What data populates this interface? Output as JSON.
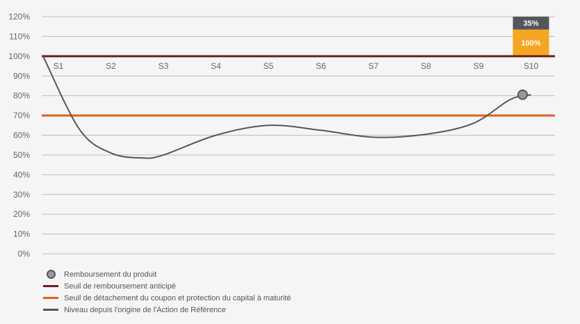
{
  "chart_data": {
    "type": "line",
    "y_ticks": [
      "0%",
      "10%",
      "20%",
      "30%",
      "40%",
      "50%",
      "60%",
      "70%",
      "80%",
      "90%",
      "100%",
      "110%",
      "120%"
    ],
    "ylim": [
      0,
      120
    ],
    "categories": [
      "S1",
      "S2",
      "S3",
      "S4",
      "S5",
      "S6",
      "S7",
      "S8",
      "S9",
      "S10"
    ],
    "series": [
      {
        "name": "Niveau depuis l'origine de l'Action de Référence",
        "color": "#55565b",
        "points": [
          {
            "x": 0.0,
            "y": 100
          },
          {
            "x": 0.4,
            "y": 63
          },
          {
            "x": 1.0,
            "y": 51
          },
          {
            "x": 1.6,
            "y": 48.5
          },
          {
            "x": 2.0,
            "y": 50
          },
          {
            "x": 3.0,
            "y": 60
          },
          {
            "x": 4.0,
            "y": 65
          },
          {
            "x": 5.0,
            "y": 62.5
          },
          {
            "x": 6.0,
            "y": 59
          },
          {
            "x": 7.0,
            "y": 60.5
          },
          {
            "x": 7.9,
            "y": 66
          },
          {
            "x": 8.6,
            "y": 78
          },
          {
            "x": 9.0,
            "y": 80.5
          }
        ]
      }
    ],
    "thresholds": [
      {
        "name": "Seuil de remboursement anticipé",
        "value": 100,
        "color": "#6b1f1f"
      },
      {
        "name": "Seuil de détachement du coupon et protection du capital à maturité",
        "value": 70,
        "color": "#e0611a"
      }
    ],
    "marker": {
      "name": "Remboursement du produit",
      "x": 9,
      "y": 80.5,
      "fill": "#9a9a9a",
      "stroke": "#55565b"
    },
    "stacked_bar": {
      "category": "S10",
      "segments": [
        {
          "label": "100%",
          "value": 100,
          "color": "#f5a623",
          "from": 100,
          "to": 113.5
        },
        {
          "label": "35%",
          "value": 35,
          "color": "#55565b",
          "from": 113.5,
          "to": 120
        }
      ]
    },
    "grid": true
  },
  "legend": {
    "items": [
      {
        "label": "Remboursement du produit",
        "kind": "marker"
      },
      {
        "label": "Seuil de remboursement anticipé",
        "kind": "line",
        "color": "#6b1f1f"
      },
      {
        "label": "Seuil de détachement du coupon et protection du capital à maturité",
        "kind": "line",
        "color": "#e0611a"
      },
      {
        "label": "Niveau depuis l'origine de l'Action de Référence",
        "kind": "line",
        "color": "#55565b"
      }
    ]
  }
}
